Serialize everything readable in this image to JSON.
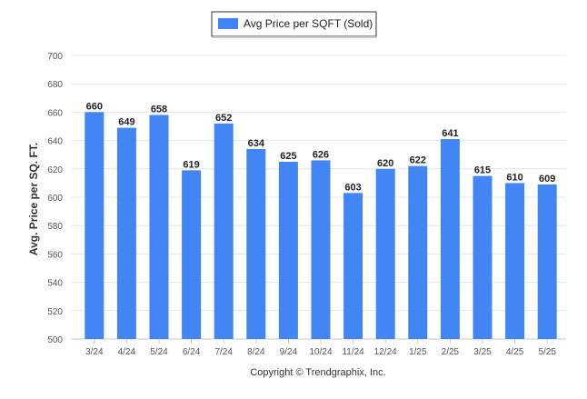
{
  "chart_data": {
    "type": "bar",
    "title": "",
    "xlabel": "",
    "ylabel": "Avg. Price per SQ. FT.",
    "ylim": [
      500,
      700
    ],
    "yticks": [
      500,
      520,
      540,
      560,
      580,
      600,
      620,
      640,
      660,
      680,
      700
    ],
    "categories": [
      "3/24",
      "4/24",
      "5/24",
      "6/24",
      "7/24",
      "8/24",
      "9/24",
      "10/24",
      "11/24",
      "12/24",
      "1/25",
      "2/25",
      "3/25",
      "4/25",
      "5/25"
    ],
    "series": [
      {
        "name": "Avg Price per SQFT (Sold)",
        "values": [
          660,
          649,
          658,
          619,
          652,
          634,
          625,
          626,
          603,
          620,
          622,
          641,
          615,
          610,
          609
        ],
        "color": "#4285f4"
      }
    ],
    "grid": true,
    "legend_position": "top-center",
    "data_labels": true
  },
  "footer": {
    "copyright": "Copyright © Trendgraphix, Inc."
  },
  "colors": {
    "bar": "#4285f4",
    "grid": "#e4e4e4",
    "axis": "#c9c9c9",
    "tick_text": "#555555",
    "label_text": "#222222"
  }
}
